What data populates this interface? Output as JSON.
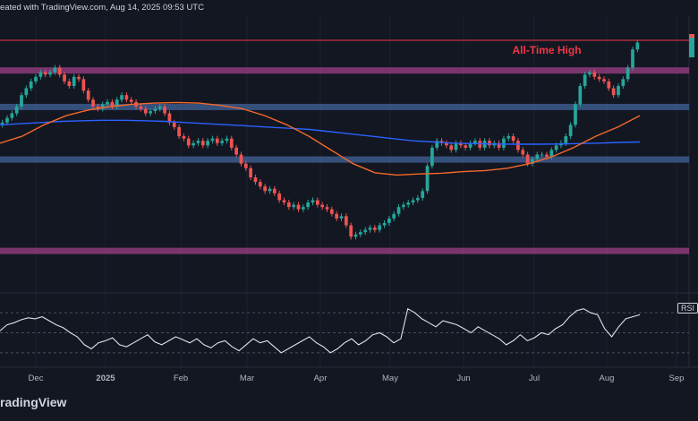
{
  "header": {
    "text": "eated with TradingView.com, Aug 14, 2025 09:53 UTC"
  },
  "footer": {
    "brand": "radingView"
  },
  "colors": {
    "background": "#131722",
    "up": "#26a69a",
    "down": "#ef5350",
    "ma_fast": "#2962ff",
    "ma_slow": "#f5682a",
    "ath_line": "#f23645",
    "rsi_line": "#e0e3eb",
    "zone_purple": "#8e3b7a",
    "zone_blue": "#3d5a8c"
  },
  "chart_data": {
    "type": "candlestick",
    "title": "",
    "x_ticks": [
      "Dec",
      "2025",
      "Feb",
      "Mar",
      "Apr",
      "May",
      "Jun",
      "Jul",
      "Aug",
      "Sep"
    ],
    "annotations": [
      {
        "text": "All-Time High",
        "color": "#f23645"
      }
    ],
    "zones": [
      {
        "name": "all-time-high-line",
        "color": "#f23645",
        "level": 100
      },
      {
        "name": "resistance-upper",
        "color": "#8e3b7a",
        "level": 87
      },
      {
        "name": "resistance-mid",
        "color": "#3d5a8c",
        "level": 71
      },
      {
        "name": "support-mid",
        "color": "#3d5a8c",
        "level": 48
      },
      {
        "name": "support-low",
        "color": "#8e3b7a",
        "level": 8
      }
    ],
    "candle_closes": [
      64,
      66,
      68,
      71,
      76,
      79,
      82,
      84,
      86,
      85,
      86,
      88,
      85,
      82,
      80,
      84,
      83,
      78,
      74,
      71,
      70,
      72,
      73,
      71,
      74,
      76,
      74,
      73,
      71,
      70,
      68,
      69,
      70,
      71,
      68,
      64,
      62,
      58,
      57,
      54,
      55,
      56,
      54,
      56,
      57,
      55,
      56,
      57,
      53,
      50,
      46,
      44,
      40,
      38,
      36,
      34,
      35,
      33,
      30,
      29,
      27,
      28,
      26,
      27,
      29,
      30,
      28,
      27,
      26,
      24,
      22,
      23,
      19,
      14,
      15,
      16,
      17,
      18,
      17,
      19,
      20,
      22,
      24,
      27,
      28,
      29,
      30,
      31,
      34,
      45,
      53,
      56,
      55,
      54,
      52,
      55,
      54,
      53,
      55,
      56,
      53,
      56,
      54,
      55,
      53,
      57,
      58,
      56,
      52,
      50,
      46,
      48,
      50,
      50,
      49,
      52,
      54,
      55,
      58,
      63,
      72,
      80,
      85,
      86,
      84,
      83,
      82,
      79,
      76,
      80,
      83,
      88,
      96,
      99
    ],
    "moving_averages": [
      {
        "color": "#2962ff",
        "values": [
          63,
          63.5,
          64,
          64.5,
          64.8,
          65,
          65,
          64.8,
          64.5,
          64,
          63.5,
          63,
          62.5,
          62,
          61.5,
          61,
          60,
          59,
          58,
          57,
          56,
          55.5,
          55,
          54.8,
          54.6,
          54.5,
          54.5,
          54.6,
          54.8,
          55,
          55.3,
          55.5
        ]
      },
      {
        "color": "#f5682a",
        "values": [
          55,
          58,
          63,
          67,
          69.5,
          71,
          72,
          72.5,
          72.8,
          72.5,
          71.5,
          70,
          67,
          63,
          58,
          52,
          46,
          42,
          41,
          41.5,
          41.8,
          42.5,
          43,
          44,
          46,
          49,
          53,
          58,
          62,
          67
        ]
      }
    ],
    "rsi": {
      "label": "RSI",
      "levels": [
        70,
        50,
        30
      ],
      "values": [
        52,
        58,
        60,
        63,
        65,
        64,
        66,
        62,
        58,
        55,
        50,
        46,
        38,
        34,
        40,
        42,
        45,
        38,
        36,
        40,
        44,
        48,
        41,
        38,
        42,
        46,
        43,
        40,
        44,
        38,
        35,
        40,
        42,
        36,
        32,
        38,
        44,
        40,
        42,
        36,
        30,
        34,
        38,
        42,
        46,
        40,
        36,
        30,
        34,
        40,
        44,
        38,
        42,
        48,
        50,
        46,
        40,
        44,
        74,
        70,
        64,
        60,
        56,
        62,
        60,
        58,
        54,
        50,
        56,
        52,
        48,
        44,
        38,
        42,
        48,
        42,
        45,
        50,
        48,
        54,
        58,
        66,
        72,
        74,
        70,
        68,
        54,
        46,
        56,
        64,
        66,
        68
      ]
    }
  }
}
